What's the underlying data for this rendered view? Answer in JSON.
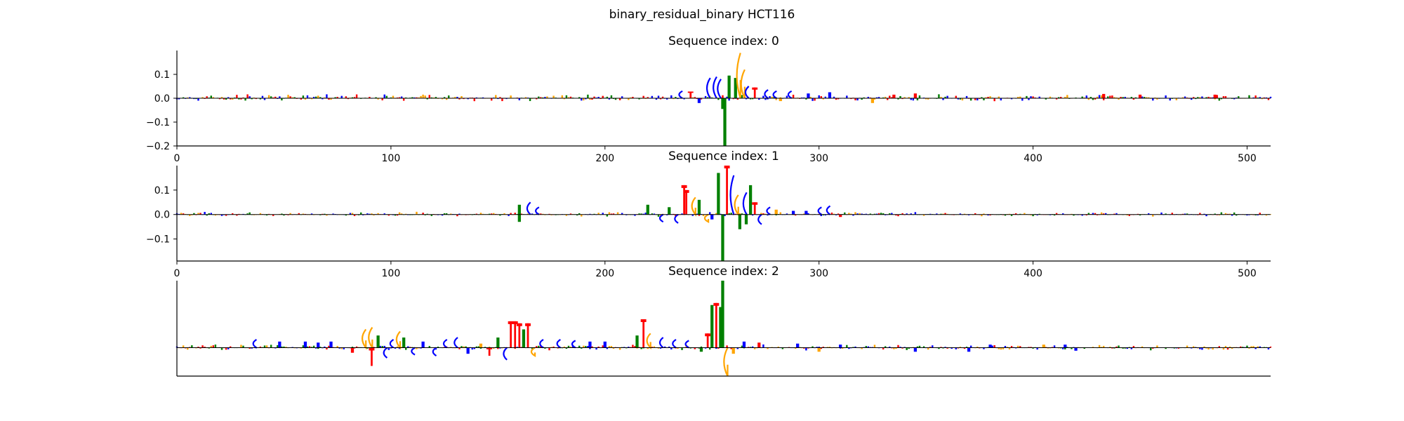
{
  "figure": {
    "title": "binary_residual_binary HCT116"
  },
  "colors": {
    "A": "#008000",
    "C": "#0000ff",
    "G": "#ffa500",
    "T": "#ff0000",
    "axis": "#000000"
  },
  "chart_data": [
    {
      "type": "bar",
      "title": "Sequence index: 0",
      "x_range": [
        0,
        511
      ],
      "ylim": [
        -0.2,
        0.2
      ],
      "xticks": [
        0,
        100,
        200,
        300,
        400,
        500
      ],
      "yticks": [
        -0.2,
        -0.1,
        0.0,
        0.1
      ],
      "yticklabels": [
        "−0.2",
        "−0.1",
        "0.0",
        "0.1"
      ],
      "show_xticks": true,
      "show_yticks": true,
      "peaks": [
        {
          "x": 235,
          "value": 0.03,
          "base": "C"
        },
        {
          "x": 240,
          "value": 0.028,
          "base": "T"
        },
        {
          "x": 244,
          "value": -0.02,
          "base": "C"
        },
        {
          "x": 248,
          "value": 0.085,
          "base": "C"
        },
        {
          "x": 251,
          "value": 0.09,
          "base": "C"
        },
        {
          "x": 253,
          "value": 0.08,
          "base": "C"
        },
        {
          "x": 255,
          "value": -0.045,
          "base": "A"
        },
        {
          "x": 256,
          "value": -0.2,
          "base": "A"
        },
        {
          "x": 258,
          "value": 0.095,
          "base": "A"
        },
        {
          "x": 261,
          "value": 0.085,
          "base": "A"
        },
        {
          "x": 262,
          "value": 0.19,
          "base": "G"
        },
        {
          "x": 264,
          "value": 0.12,
          "base": "G"
        },
        {
          "x": 266,
          "value": 0.05,
          "base": "C"
        },
        {
          "x": 270,
          "value": 0.045,
          "base": "T"
        },
        {
          "x": 275,
          "value": 0.035,
          "base": "C"
        },
        {
          "x": 279,
          "value": 0.03,
          "base": "C"
        },
        {
          "x": 282,
          "value": -0.012,
          "base": "G"
        },
        {
          "x": 286,
          "value": 0.03,
          "base": "C"
        },
        {
          "x": 295,
          "value": 0.02,
          "base": "C"
        },
        {
          "x": 305,
          "value": 0.025,
          "base": "C"
        },
        {
          "x": 325,
          "value": -0.02,
          "base": "G"
        },
        {
          "x": 335,
          "value": 0.015,
          "base": "T"
        },
        {
          "x": 345,
          "value": 0.02,
          "base": "T"
        },
        {
          "x": 433,
          "value": 0.018,
          "base": "T"
        },
        {
          "x": 450,
          "value": 0.015,
          "base": "T"
        },
        {
          "x": 485,
          "value": 0.015,
          "base": "T"
        }
      ],
      "noise_amplitude": 0.012
    },
    {
      "type": "bar",
      "title": "Sequence index: 1",
      "x_range": [
        0,
        511
      ],
      "ylim": [
        -0.19,
        0.2
      ],
      "xticks": [
        0,
        100,
        200,
        300,
        400,
        500
      ],
      "yticks": [
        -0.1,
        0.0,
        0.1
      ],
      "yticklabels": [
        "−0.1",
        "0.0",
        "0.1"
      ],
      "show_xticks": true,
      "show_yticks": true,
      "peaks": [
        {
          "x": 160,
          "value": 0.04,
          "base": "A"
        },
        {
          "x": 164,
          "value": 0.05,
          "base": "C"
        },
        {
          "x": 168,
          "value": 0.03,
          "base": "C"
        },
        {
          "x": 160,
          "value": -0.03,
          "base": "A"
        },
        {
          "x": 220,
          "value": 0.04,
          "base": "A"
        },
        {
          "x": 226,
          "value": -0.03,
          "base": "C"
        },
        {
          "x": 230,
          "value": 0.03,
          "base": "A"
        },
        {
          "x": 233,
          "value": -0.035,
          "base": "C"
        },
        {
          "x": 237,
          "value": 0.12,
          "base": "T"
        },
        {
          "x": 238,
          "value": 0.1,
          "base": "T"
        },
        {
          "x": 241,
          "value": 0.07,
          "base": "G"
        },
        {
          "x": 244,
          "value": 0.06,
          "base": "A"
        },
        {
          "x": 247,
          "value": -0.03,
          "base": "G"
        },
        {
          "x": 250,
          "value": -0.02,
          "base": "C"
        },
        {
          "x": 253,
          "value": 0.17,
          "base": "A"
        },
        {
          "x": 255,
          "value": -0.19,
          "base": "A"
        },
        {
          "x": 257,
          "value": 0.2,
          "base": "T"
        },
        {
          "x": 259,
          "value": 0.16,
          "base": "C"
        },
        {
          "x": 261,
          "value": 0.08,
          "base": "G"
        },
        {
          "x": 263,
          "value": -0.06,
          "base": "A"
        },
        {
          "x": 265,
          "value": 0.09,
          "base": "C"
        },
        {
          "x": 266,
          "value": -0.04,
          "base": "A"
        },
        {
          "x": 268,
          "value": 0.12,
          "base": "A"
        },
        {
          "x": 270,
          "value": 0.05,
          "base": "T"
        },
        {
          "x": 272,
          "value": -0.04,
          "base": "C"
        },
        {
          "x": 276,
          "value": 0.03,
          "base": "C"
        },
        {
          "x": 280,
          "value": 0.02,
          "base": "G"
        },
        {
          "x": 288,
          "value": 0.015,
          "base": "C"
        },
        {
          "x": 294,
          "value": 0.015,
          "base": "C"
        },
        {
          "x": 300,
          "value": 0.03,
          "base": "C"
        },
        {
          "x": 304,
          "value": 0.035,
          "base": "C"
        },
        {
          "x": 310,
          "value": -0.01,
          "base": "T"
        }
      ],
      "noise_amplitude": 0.008
    },
    {
      "type": "bar",
      "title": "Sequence index: 2",
      "x_range": [
        0,
        511
      ],
      "ylim": [
        -0.14,
        0.33
      ],
      "xticks": [],
      "yticks": [],
      "yticklabels": [],
      "show_xticks": false,
      "show_yticks": false,
      "peaks": [
        {
          "x": 36,
          "value": 0.04,
          "base": "C"
        },
        {
          "x": 48,
          "value": 0.03,
          "base": "C"
        },
        {
          "x": 60,
          "value": 0.03,
          "base": "C"
        },
        {
          "x": 66,
          "value": 0.025,
          "base": "C"
        },
        {
          "x": 72,
          "value": 0.03,
          "base": "C"
        },
        {
          "x": 82,
          "value": -0.025,
          "base": "T"
        },
        {
          "x": 87,
          "value": 0.09,
          "base": "G"
        },
        {
          "x": 90,
          "value": 0.1,
          "base": "G"
        },
        {
          "x": 91,
          "value": -0.09,
          "base": "T"
        },
        {
          "x": 94,
          "value": 0.06,
          "base": "A"
        },
        {
          "x": 97,
          "value": -0.05,
          "base": "C"
        },
        {
          "x": 100,
          "value": 0.04,
          "base": "C"
        },
        {
          "x": 103,
          "value": 0.08,
          "base": "G"
        },
        {
          "x": 106,
          "value": 0.05,
          "base": "A"
        },
        {
          "x": 110,
          "value": -0.035,
          "base": "C"
        },
        {
          "x": 115,
          "value": 0.03,
          "base": "C"
        },
        {
          "x": 120,
          "value": -0.04,
          "base": "C"
        },
        {
          "x": 125,
          "value": 0.04,
          "base": "C"
        },
        {
          "x": 130,
          "value": 0.05,
          "base": "C"
        },
        {
          "x": 136,
          "value": -0.03,
          "base": "C"
        },
        {
          "x": 142,
          "value": 0.02,
          "base": "G"
        },
        {
          "x": 146,
          "value": -0.04,
          "base": "T"
        },
        {
          "x": 150,
          "value": 0.05,
          "base": "A"
        },
        {
          "x": 153,
          "value": -0.06,
          "base": "C"
        },
        {
          "x": 156,
          "value": 0.13,
          "base": "T"
        },
        {
          "x": 158,
          "value": 0.13,
          "base": "T"
        },
        {
          "x": 160,
          "value": 0.12,
          "base": "T"
        },
        {
          "x": 162,
          "value": 0.09,
          "base": "A"
        },
        {
          "x": 164,
          "value": 0.12,
          "base": "T"
        },
        {
          "x": 166,
          "value": -0.04,
          "base": "G"
        },
        {
          "x": 170,
          "value": 0.04,
          "base": "C"
        },
        {
          "x": 178,
          "value": 0.04,
          "base": "C"
        },
        {
          "x": 185,
          "value": 0.035,
          "base": "C"
        },
        {
          "x": 193,
          "value": 0.03,
          "base": "C"
        },
        {
          "x": 200,
          "value": 0.03,
          "base": "C"
        },
        {
          "x": 215,
          "value": 0.06,
          "base": "A"
        },
        {
          "x": 218,
          "value": 0.14,
          "base": "T"
        },
        {
          "x": 220,
          "value": 0.07,
          "base": "G"
        },
        {
          "x": 226,
          "value": 0.05,
          "base": "C"
        },
        {
          "x": 232,
          "value": 0.04,
          "base": "C"
        },
        {
          "x": 238,
          "value": 0.035,
          "base": "C"
        },
        {
          "x": 245,
          "value": -0.02,
          "base": "A"
        },
        {
          "x": 248,
          "value": 0.07,
          "base": "T"
        },
        {
          "x": 250,
          "value": 0.21,
          "base": "A"
        },
        {
          "x": 252,
          "value": 0.22,
          "base": "T"
        },
        {
          "x": 254,
          "value": 0.2,
          "base": "A"
        },
        {
          "x": 255,
          "value": 0.33,
          "base": "A"
        },
        {
          "x": 256,
          "value": -0.14,
          "base": "G"
        },
        {
          "x": 260,
          "value": -0.03,
          "base": "G"
        },
        {
          "x": 265,
          "value": 0.03,
          "base": "C"
        },
        {
          "x": 272,
          "value": 0.025,
          "base": "T"
        },
        {
          "x": 290,
          "value": 0.02,
          "base": "C"
        },
        {
          "x": 300,
          "value": -0.02,
          "base": "G"
        },
        {
          "x": 310,
          "value": 0.015,
          "base": "C"
        },
        {
          "x": 345,
          "value": -0.02,
          "base": "C"
        },
        {
          "x": 370,
          "value": -0.02,
          "base": "C"
        },
        {
          "x": 380,
          "value": 0.015,
          "base": "C"
        },
        {
          "x": 405,
          "value": 0.015,
          "base": "G"
        },
        {
          "x": 415,
          "value": 0.015,
          "base": "C"
        },
        {
          "x": 420,
          "value": -0.015,
          "base": "C"
        }
      ],
      "noise_amplitude": 0.012
    }
  ]
}
